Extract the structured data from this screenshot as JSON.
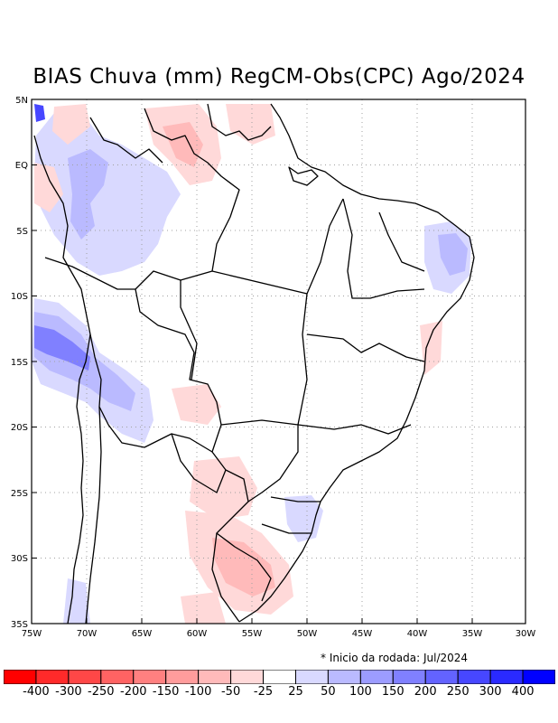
{
  "title": "BIAS Chuva (mm) RegCM-Obs(CPC) Ago/2024",
  "footnote": "* Inicio da rodada: Jul/2024",
  "lat_ticks": [
    "5N",
    "EQ",
    "5S",
    "10S",
    "15S",
    "20S",
    "25S",
    "30S",
    "35S"
  ],
  "lon_ticks": [
    "75W",
    "70W",
    "65W",
    "60W",
    "55W",
    "50W",
    "45W",
    "40W",
    "35W",
    "30W"
  ],
  "colorbar": {
    "labels": [
      "-400",
      "-300",
      "-250",
      "-200",
      "-150",
      "-100",
      "-50",
      "-25",
      "25",
      "50",
      "100",
      "150",
      "200",
      "250",
      "300",
      "400"
    ],
    "colors": [
      "#ff0000",
      "#ff2a2a",
      "#ff4747",
      "#ff6363",
      "#ff8080",
      "#ff9c9c",
      "#ffbaba",
      "#ffd9d9",
      "#ffffff",
      "#d9d9ff",
      "#babaff",
      "#9c9cff",
      "#8080ff",
      "#6363ff",
      "#4747ff",
      "#2a2aff",
      "#0000ff"
    ]
  }
}
